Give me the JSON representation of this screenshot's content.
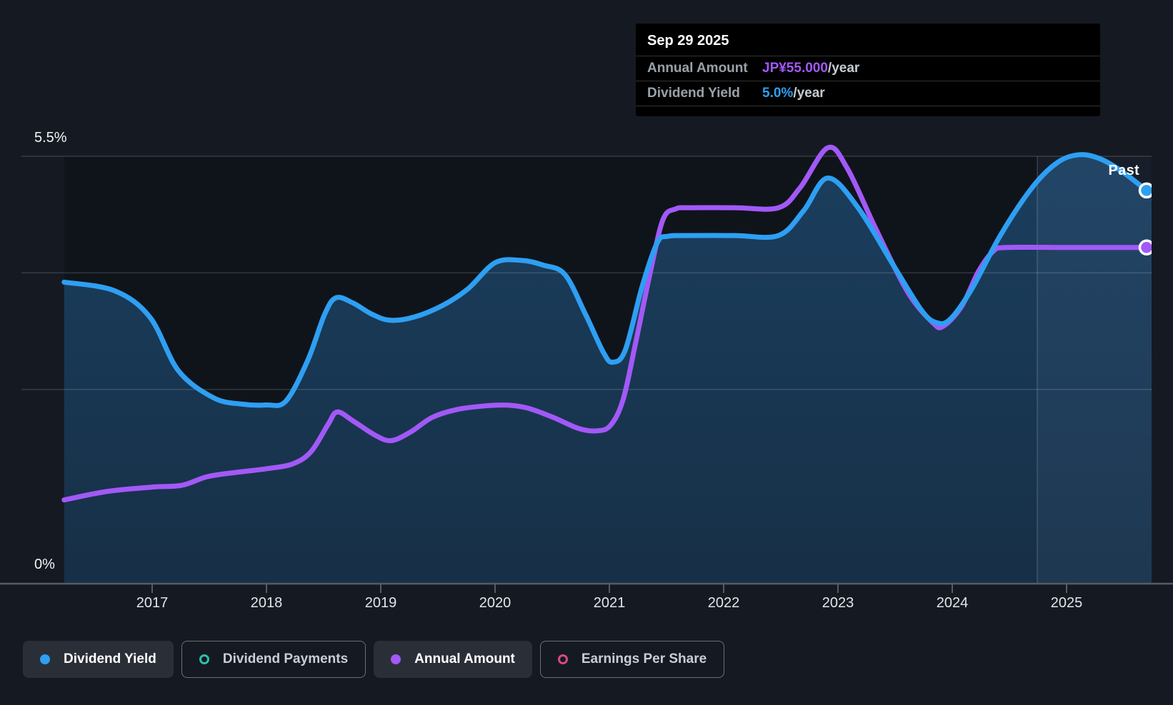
{
  "page": {
    "background": "#151A22"
  },
  "tooltip": {
    "date": "Sep 29 2025",
    "rows": [
      {
        "label": "Annual Amount",
        "value": "JP¥55.000",
        "suffix": "/year",
        "color": "#A259F7"
      },
      {
        "label": "Dividend Yield",
        "value": "5.0%",
        "suffix": "/year",
        "color": "#2E9FF2"
      }
    ]
  },
  "axis": {
    "y_top_label": "5.5%",
    "y_bottom_label": "0%",
    "past_label": "Past"
  },
  "legend": {
    "items": [
      {
        "label": "Dividend Yield",
        "color": "#2E9FF2",
        "marker": "filled-dot",
        "active": true
      },
      {
        "label": "Dividend Payments",
        "color": "#2CBFAD",
        "marker": "open-ring",
        "active": false
      },
      {
        "label": "Annual Amount",
        "color": "#A259F7",
        "marker": "filled-dot",
        "active": true
      },
      {
        "label": "Earnings Per Share",
        "color": "#DC4687",
        "marker": "open-ring",
        "active": false
      }
    ]
  },
  "chart_data": {
    "type": "area",
    "x_labels": [
      "2017",
      "2018",
      "2019",
      "2020",
      "2021",
      "2022",
      "2023",
      "2024",
      "2025"
    ],
    "x_range": [
      2016.23,
      2025.74
    ],
    "ylim_pct": [
      0,
      5.5
    ],
    "y_gridlines_pct": [
      5.5,
      4.0,
      2.5
    ],
    "grid": true,
    "legend_position": "bottom",
    "past_divider_year": 2024.744,
    "series": [
      {
        "name": "Dividend Yield",
        "unit": "%",
        "color": "#2E9FF2",
        "fill": true,
        "end_value_label": "5.0%/year",
        "points": [
          [
            2016.23,
            3.88
          ],
          [
            2016.67,
            3.77
          ],
          [
            2016.98,
            3.43
          ],
          [
            2017.23,
            2.74
          ],
          [
            2017.54,
            2.39
          ],
          [
            2017.79,
            2.31
          ],
          [
            2018.0,
            2.3
          ],
          [
            2018.17,
            2.35
          ],
          [
            2018.36,
            2.87
          ],
          [
            2018.51,
            3.47
          ],
          [
            2018.61,
            3.68
          ],
          [
            2018.76,
            3.61
          ],
          [
            2018.92,
            3.47
          ],
          [
            2019.08,
            3.39
          ],
          [
            2019.29,
            3.43
          ],
          [
            2019.54,
            3.58
          ],
          [
            2019.76,
            3.79
          ],
          [
            2020.0,
            4.13
          ],
          [
            2020.23,
            4.16
          ],
          [
            2020.42,
            4.1
          ],
          [
            2020.61,
            3.98
          ],
          [
            2020.79,
            3.47
          ],
          [
            2020.95,
            2.97
          ],
          [
            2021.03,
            2.85
          ],
          [
            2021.14,
            3.01
          ],
          [
            2021.29,
            3.84
          ],
          [
            2021.42,
            4.39
          ],
          [
            2021.51,
            4.47
          ],
          [
            2021.67,
            4.48
          ],
          [
            2022.1,
            4.48
          ],
          [
            2022.48,
            4.48
          ],
          [
            2022.7,
            4.8
          ],
          [
            2022.91,
            5.22
          ],
          [
            2023.17,
            4.85
          ],
          [
            2023.48,
            4.11
          ],
          [
            2023.73,
            3.52
          ],
          [
            2023.86,
            3.36
          ],
          [
            2023.98,
            3.4
          ],
          [
            2024.17,
            3.79
          ],
          [
            2024.42,
            4.48
          ],
          [
            2024.7,
            5.1
          ],
          [
            2024.92,
            5.42
          ],
          [
            2025.11,
            5.52
          ],
          [
            2025.29,
            5.47
          ],
          [
            2025.48,
            5.31
          ],
          [
            2025.7,
            5.06
          ]
        ]
      },
      {
        "name": "Annual Amount",
        "unit": "JP¥/year",
        "color": "#A259F7",
        "fill": false,
        "jpy_per_yield_pct": 12.712,
        "end_value_label": "JP¥55.000/year",
        "points": [
          [
            2016.23,
            13.7
          ],
          [
            2016.61,
            15.1
          ],
          [
            2017.0,
            15.8
          ],
          [
            2017.26,
            16.1
          ],
          [
            2017.48,
            17.5
          ],
          [
            2017.73,
            18.2
          ],
          [
            2018.0,
            18.8
          ],
          [
            2018.23,
            19.6
          ],
          [
            2018.39,
            21.6
          ],
          [
            2018.54,
            26.1
          ],
          [
            2018.62,
            28.1
          ],
          [
            2018.76,
            26.6
          ],
          [
            2018.95,
            24.3
          ],
          [
            2019.09,
            23.4
          ],
          [
            2019.26,
            24.8
          ],
          [
            2019.45,
            27.2
          ],
          [
            2019.67,
            28.5
          ],
          [
            2019.92,
            29.1
          ],
          [
            2020.11,
            29.2
          ],
          [
            2020.29,
            28.7
          ],
          [
            2020.51,
            27.2
          ],
          [
            2020.73,
            25.4
          ],
          [
            2020.89,
            25.0
          ],
          [
            2021.01,
            25.9
          ],
          [
            2021.12,
            30.1
          ],
          [
            2021.23,
            39.4
          ],
          [
            2021.36,
            51.1
          ],
          [
            2021.47,
            59.6
          ],
          [
            2021.58,
            61.3
          ],
          [
            2021.7,
            61.5
          ],
          [
            2022.1,
            61.5
          ],
          [
            2022.48,
            61.5
          ],
          [
            2022.67,
            64.8
          ],
          [
            2022.91,
            71.3
          ],
          [
            2023.08,
            68.0
          ],
          [
            2023.33,
            58.1
          ],
          [
            2023.61,
            47.7
          ],
          [
            2023.83,
            42.7
          ],
          [
            2023.92,
            42.1
          ],
          [
            2024.08,
            45.3
          ],
          [
            2024.23,
            51.1
          ],
          [
            2024.36,
            54.4
          ],
          [
            2024.48,
            55.0
          ],
          [
            2025.0,
            55.0
          ],
          [
            2025.4,
            55.0
          ],
          [
            2025.7,
            55.0
          ]
        ]
      }
    ]
  }
}
